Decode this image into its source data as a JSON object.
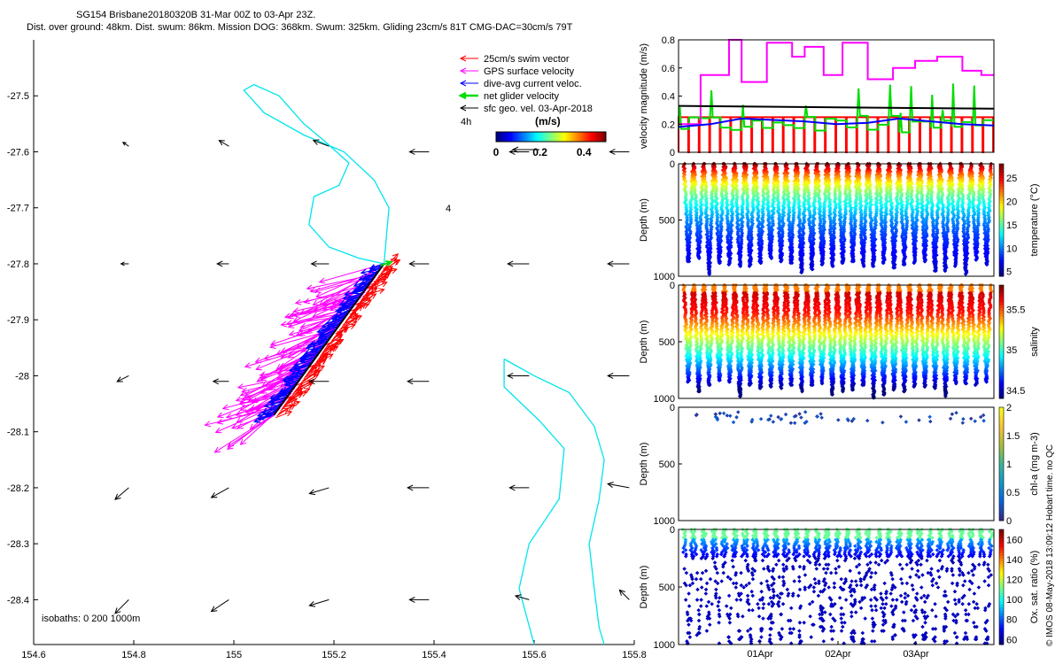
{
  "header": {
    "line1": "SG154 Brisbane20180320B 31-Mar 00Z to 03-Apr 23Z.",
    "line2": "Dist. over ground: 48km. Dist. swum: 86km. Mission DOG: 368km. Swum: 325km. Gliding 23cm/s 81T CMG-DAC=30cm/s 79T"
  },
  "colors": {
    "swim": "#ff0000",
    "gps": "#ff00ff",
    "dac": "#0000ff",
    "net": "#00dd00",
    "geo": "#000000",
    "isobath": "#00e5ee"
  },
  "chart_data": [
    {
      "type": "map",
      "xlim": [
        154.6,
        155.8
      ],
      "ylim": [
        -28.48,
        -27.4
      ],
      "x_ticks": [
        "154.6",
        "154.8",
        "155",
        "155.2",
        "155.4",
        "155.6",
        "155.8"
      ],
      "y_ticks": [
        "-27.5",
        "-27.6",
        "-27.7",
        "-27.8",
        "-27.9",
        "-28",
        "-28.1",
        "-28.2",
        "-28.3",
        "-28.4"
      ],
      "legend": [
        {
          "label": "25cm/s swim vector",
          "color": "#ff0000"
        },
        {
          "label": "GPS surface velocity",
          "color": "#ff00ff"
        },
        {
          "label": "dive-avg current veloc.",
          "color": "#0000ff"
        },
        {
          "label": "net glider velocity",
          "color": "#00dd00"
        },
        {
          "label": "sfc geo. vel. 03-Apr-2018",
          "color": "#000000"
        }
      ],
      "legend_note": "4h",
      "colorbar": {
        "title": "(m/s)",
        "ticks": [
          "0",
          "0.2",
          "0.4"
        ],
        "range": [
          0,
          0.5
        ]
      },
      "isobath_label": "isobaths: 0   200  1000m",
      "annotation": "4",
      "track_start": [
        155.3,
        -27.8
      ],
      "track_end": [
        155.08,
        -28.07
      ],
      "isobath_north": [
        [
          155.3,
          -27.8
        ],
        [
          155.31,
          -27.7
        ],
        [
          155.28,
          -27.65
        ],
        [
          155.22,
          -27.6
        ],
        [
          155.14,
          -27.57
        ],
        [
          155.06,
          -27.53
        ],
        [
          155.02,
          -27.49
        ],
        [
          155.04,
          -27.48
        ],
        [
          155.09,
          -27.5
        ],
        [
          155.14,
          -27.55
        ],
        [
          155.18,
          -27.58
        ],
        [
          155.23,
          -27.62
        ],
        [
          155.21,
          -27.66
        ],
        [
          155.16,
          -27.68
        ],
        [
          155.15,
          -27.73
        ],
        [
          155.19,
          -27.77
        ],
        [
          155.25,
          -27.79
        ],
        [
          155.3,
          -27.8
        ]
      ],
      "isobath_south": [
        [
          155.54,
          -27.97
        ],
        [
          155.6,
          -28.0
        ],
        [
          155.67,
          -28.03
        ],
        [
          155.72,
          -28.09
        ],
        [
          155.74,
          -28.15
        ],
        [
          155.73,
          -28.22
        ],
        [
          155.71,
          -28.3
        ],
        [
          155.72,
          -28.38
        ],
        [
          155.73,
          -28.45
        ],
        [
          155.74,
          -28.48
        ]
      ],
      "isobath_south2": [
        [
          155.54,
          -27.97
        ],
        [
          155.54,
          -28.02
        ],
        [
          155.61,
          -28.08
        ],
        [
          155.66,
          -28.13
        ],
        [
          155.65,
          -28.22
        ],
        [
          155.59,
          -28.3
        ],
        [
          155.57,
          -28.38
        ],
        [
          155.6,
          -28.48
        ]
      ],
      "geo_vectors": [
        {
          "x": 154.79,
          "y": -27.59,
          "u": -0.3,
          "v": 0.2
        },
        {
          "x": 154.99,
          "y": -27.59,
          "u": -0.5,
          "v": 0.3
        },
        {
          "x": 155.19,
          "y": -27.59,
          "u": -0.8,
          "v": 0.3
        },
        {
          "x": 155.39,
          "y": -27.6,
          "u": -1.0,
          "v": 0.0
        },
        {
          "x": 155.59,
          "y": -27.6,
          "u": -1.0,
          "v": 0.0
        },
        {
          "x": 155.79,
          "y": -27.6,
          "u": -1.0,
          "v": 0.0
        },
        {
          "x": 154.79,
          "y": -27.8,
          "u": -0.4,
          "v": 0.0
        },
        {
          "x": 154.99,
          "y": -27.8,
          "u": -0.6,
          "v": 0.0
        },
        {
          "x": 155.19,
          "y": -27.8,
          "u": -0.9,
          "v": 0.0
        },
        {
          "x": 155.39,
          "y": -27.8,
          "u": -1.0,
          "v": 0.0
        },
        {
          "x": 155.59,
          "y": -27.8,
          "u": -1.1,
          "v": 0.0
        },
        {
          "x": 155.79,
          "y": -27.8,
          "u": -1.1,
          "v": 0.0
        },
        {
          "x": 154.79,
          "y": -28.0,
          "u": -0.6,
          "v": -0.3
        },
        {
          "x": 154.99,
          "y": -28.01,
          "u": -0.8,
          "v": 0.0
        },
        {
          "x": 155.19,
          "y": -28.01,
          "u": -1.0,
          "v": 0.0
        },
        {
          "x": 155.39,
          "y": -28.01,
          "u": -1.1,
          "v": 0.0
        },
        {
          "x": 155.59,
          "y": -28.0,
          "u": -1.1,
          "v": 0.0
        },
        {
          "x": 155.79,
          "y": -28.0,
          "u": -1.1,
          "v": 0.0
        },
        {
          "x": 154.79,
          "y": -28.2,
          "u": -0.7,
          "v": -0.6
        },
        {
          "x": 154.99,
          "y": -28.2,
          "u": -0.9,
          "v": -0.5
        },
        {
          "x": 155.19,
          "y": -28.2,
          "u": -1.0,
          "v": -0.3
        },
        {
          "x": 155.39,
          "y": -28.2,
          "u": -1.1,
          "v": 0.0
        },
        {
          "x": 155.59,
          "y": -28.2,
          "u": -1.0,
          "v": 0.0
        },
        {
          "x": 155.79,
          "y": -28.2,
          "u": -1.1,
          "v": 0.2
        },
        {
          "x": 154.79,
          "y": -28.4,
          "u": -0.7,
          "v": -0.7
        },
        {
          "x": 154.99,
          "y": -28.4,
          "u": -0.9,
          "v": -0.6
        },
        {
          "x": 155.19,
          "y": -28.4,
          "u": -1.0,
          "v": -0.3
        },
        {
          "x": 155.39,
          "y": -28.4,
          "u": -1.0,
          "v": 0.0
        },
        {
          "x": 155.59,
          "y": -28.4,
          "u": -0.7,
          "v": 0.2
        },
        {
          "x": 155.79,
          "y": -28.4,
          "u": -0.5,
          "v": 0.5
        }
      ]
    },
    {
      "type": "line",
      "ylabel": "velocity magnitude (m/s)",
      "ylim": [
        0,
        0.8
      ],
      "y_ticks": [
        "0",
        "0.2",
        "0.4",
        "0.6",
        "0.8"
      ],
      "series": [
        {
          "color": "#ff00ff",
          "x": [
            0,
            0.07,
            0.07,
            0.16,
            0.16,
            0.2,
            0.2,
            0.28,
            0.28,
            0.36,
            0.36,
            0.4,
            0.4,
            0.46,
            0.46,
            0.52,
            0.52,
            0.6,
            0.6,
            0.68,
            0.68,
            0.75,
            0.75,
            0.82,
            0.82,
            0.9,
            0.9,
            0.96,
            0.96,
            1.0
          ],
          "values": [
            0.2,
            0.2,
            0.55,
            0.55,
            0.8,
            0.8,
            0.5,
            0.5,
            0.78,
            0.78,
            0.68,
            0.68,
            0.75,
            0.75,
            0.55,
            0.55,
            0.78,
            0.78,
            0.52,
            0.52,
            0.6,
            0.6,
            0.65,
            0.65,
            0.68,
            0.68,
            0.58,
            0.58,
            0.55,
            0.55
          ]
        },
        {
          "color": "#000000",
          "x": [
            0,
            1
          ],
          "values": [
            0.33,
            0.31
          ]
        },
        {
          "color": "#0000ff",
          "x": [
            0,
            0.1,
            0.2,
            0.3,
            0.4,
            0.5,
            0.6,
            0.7,
            0.8,
            0.9,
            1.0
          ],
          "values": [
            0.18,
            0.2,
            0.24,
            0.23,
            0.22,
            0.2,
            0.21,
            0.24,
            0.22,
            0.2,
            0.19
          ]
        },
        {
          "color": "#ff0000",
          "type": "stairs",
          "level": 0.25
        },
        {
          "color": "#00dd00",
          "type": "stairs",
          "level": 0.2
        }
      ]
    },
    {
      "type": "scatter",
      "ylabel": "Depth (m)",
      "ylim": [
        1000,
        0
      ],
      "y_ticks": [
        "0",
        "500",
        "1000"
      ],
      "colorbar_label": "temperature (°C)",
      "colorbar_ticks": [
        "5",
        "10",
        "15",
        "20",
        "25"
      ],
      "color_range": [
        4,
        28
      ],
      "max_depth": 1000,
      "profiles": 30
    },
    {
      "type": "scatter",
      "ylabel": "Depth (m)",
      "ylim": [
        1000,
        0
      ],
      "y_ticks": [
        "0",
        "500",
        "1000"
      ],
      "colorbar_label": "salinity",
      "colorbar_ticks": [
        "34.5",
        "35",
        "35.5"
      ],
      "color_range": [
        34.4,
        35.8
      ],
      "max_depth": 1000,
      "profiles": 30
    },
    {
      "type": "scatter",
      "ylabel": "Depth (m)",
      "ylim": [
        1000,
        0
      ],
      "y_ticks": [
        "0",
        "500",
        "1000"
      ],
      "colorbar_label": "chl-a (mg m-3)",
      "colorbar_ticks": [
        "0",
        "0.5",
        "1",
        "1.5",
        "2"
      ],
      "color_range": [
        0,
        2
      ],
      "max_depth": 120
    },
    {
      "type": "scatter",
      "ylabel": "Depth (m)",
      "ylim": [
        1000,
        0
      ],
      "y_ticks": [
        "0",
        "500",
        "1000"
      ],
      "colorbar_label": "Ox. sat. ratio (%)",
      "colorbar_ticks": [
        "60",
        "80",
        "100",
        "120",
        "140",
        "160"
      ],
      "color_range": [
        55,
        170
      ],
      "x_ticks": [
        "01Apr",
        "02Apr",
        "03Apr"
      ],
      "max_depth": 1000
    }
  ],
  "credit": "© IMOS 08-May-2018 13:09:12 Hobart time. no QC"
}
